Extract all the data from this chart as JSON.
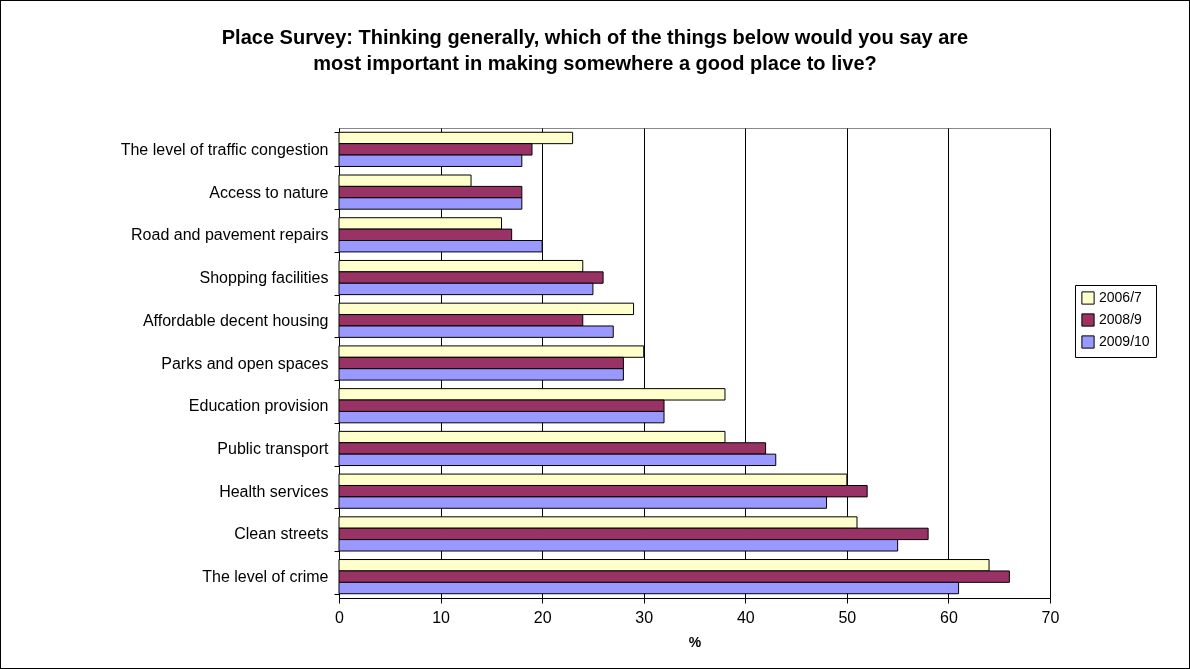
{
  "chart_data": {
    "type": "bar",
    "orientation": "horizontal",
    "title": "Place Survey:  Thinking generally, which of the things below would you say are most important in making somewhere a good place to live?",
    "xlabel": "%",
    "categories": [
      "The level of traffic congestion",
      "Access to nature",
      "Road and pavement repairs",
      "Shopping facilities",
      "Affordable decent housing",
      "Parks and open spaces",
      "Education provision",
      "Public transport",
      "Health services",
      "Clean streets",
      "The level of crime"
    ],
    "series": [
      {
        "name": "2006/7",
        "color": "#ffffcc",
        "values": [
          23,
          13,
          16,
          24,
          29,
          30,
          38,
          38,
          50,
          51,
          64
        ]
      },
      {
        "name": "2008/9",
        "color": "#993366",
        "values": [
          19,
          18,
          17,
          26,
          24,
          28,
          32,
          42,
          52,
          58,
          66
        ]
      },
      {
        "name": "2009/10",
        "color": "#9999ff",
        "values": [
          18,
          18,
          20,
          25,
          27,
          28,
          32,
          43,
          48,
          55,
          61
        ]
      }
    ],
    "xlim": [
      0,
      70
    ],
    "xticks": [
      0,
      10,
      20,
      30,
      40,
      50,
      60,
      70
    ],
    "grid": "x",
    "legend": "right"
  }
}
